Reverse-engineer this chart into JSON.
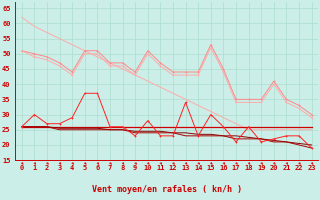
{
  "bg_color": "#cceee8",
  "grid_color": "#aaddcc",
  "xlabel": "Vent moyen/en rafales ( kn/h )",
  "ylim": [
    15,
    67
  ],
  "yticks": [
    15,
    20,
    25,
    30,
    35,
    40,
    45,
    50,
    55,
    60,
    65
  ],
  "x": [
    0,
    1,
    2,
    3,
    4,
    5,
    6,
    7,
    8,
    9,
    10,
    11,
    12,
    13,
    14,
    15,
    16,
    17,
    18,
    19,
    20,
    21,
    22,
    23
  ],
  "y_light_diag": [
    62,
    59,
    57,
    55,
    53,
    51,
    49,
    47,
    45,
    43,
    41,
    39,
    37,
    35,
    33,
    31,
    29,
    27,
    25,
    25,
    25,
    25,
    25,
    25
  ],
  "y_pink_jagged1": [
    51,
    50,
    49,
    47,
    44,
    51,
    51,
    47,
    47,
    44,
    51,
    47,
    44,
    44,
    44,
    53,
    45,
    35,
    35,
    35,
    41,
    35,
    33,
    30
  ],
  "y_pink_jagged2": [
    51,
    49,
    48,
    46,
    43,
    50,
    50,
    46,
    46,
    43,
    50,
    46,
    43,
    43,
    43,
    52,
    44,
    34,
    34,
    34,
    40,
    34,
    32,
    29
  ],
  "y_red_flat": [
    26,
    26,
    26,
    26,
    26,
    26,
    26,
    26,
    26,
    26,
    26,
    26,
    26,
    26,
    26,
    26,
    26,
    26,
    26,
    26,
    26,
    26,
    26,
    26
  ],
  "y_red_diag_smooth": [
    26,
    26,
    26,
    25.5,
    25.5,
    25.5,
    25.5,
    25,
    25,
    24.5,
    24.5,
    24.5,
    24,
    24,
    23.5,
    23.5,
    23,
    23,
    22.5,
    22,
    21.5,
    21,
    20.5,
    20
  ],
  "y_red_jagged": [
    26,
    30,
    27,
    27,
    29,
    37,
    37,
    26,
    26,
    23,
    28,
    23,
    23,
    34,
    23,
    30,
    26,
    21,
    26,
    21,
    22,
    23,
    23,
    19
  ],
  "y_dark_diag": [
    26,
    26,
    26,
    25,
    25,
    25,
    25,
    25,
    25,
    24,
    24,
    24,
    24,
    23,
    23,
    23,
    23,
    22,
    22,
    22,
    21,
    21,
    20,
    19
  ],
  "tick_label_fontsize": 5.0,
  "xlabel_fontsize": 6.0,
  "marker_size": 2.0,
  "lw_thin": 0.7,
  "lw_medium": 0.9
}
